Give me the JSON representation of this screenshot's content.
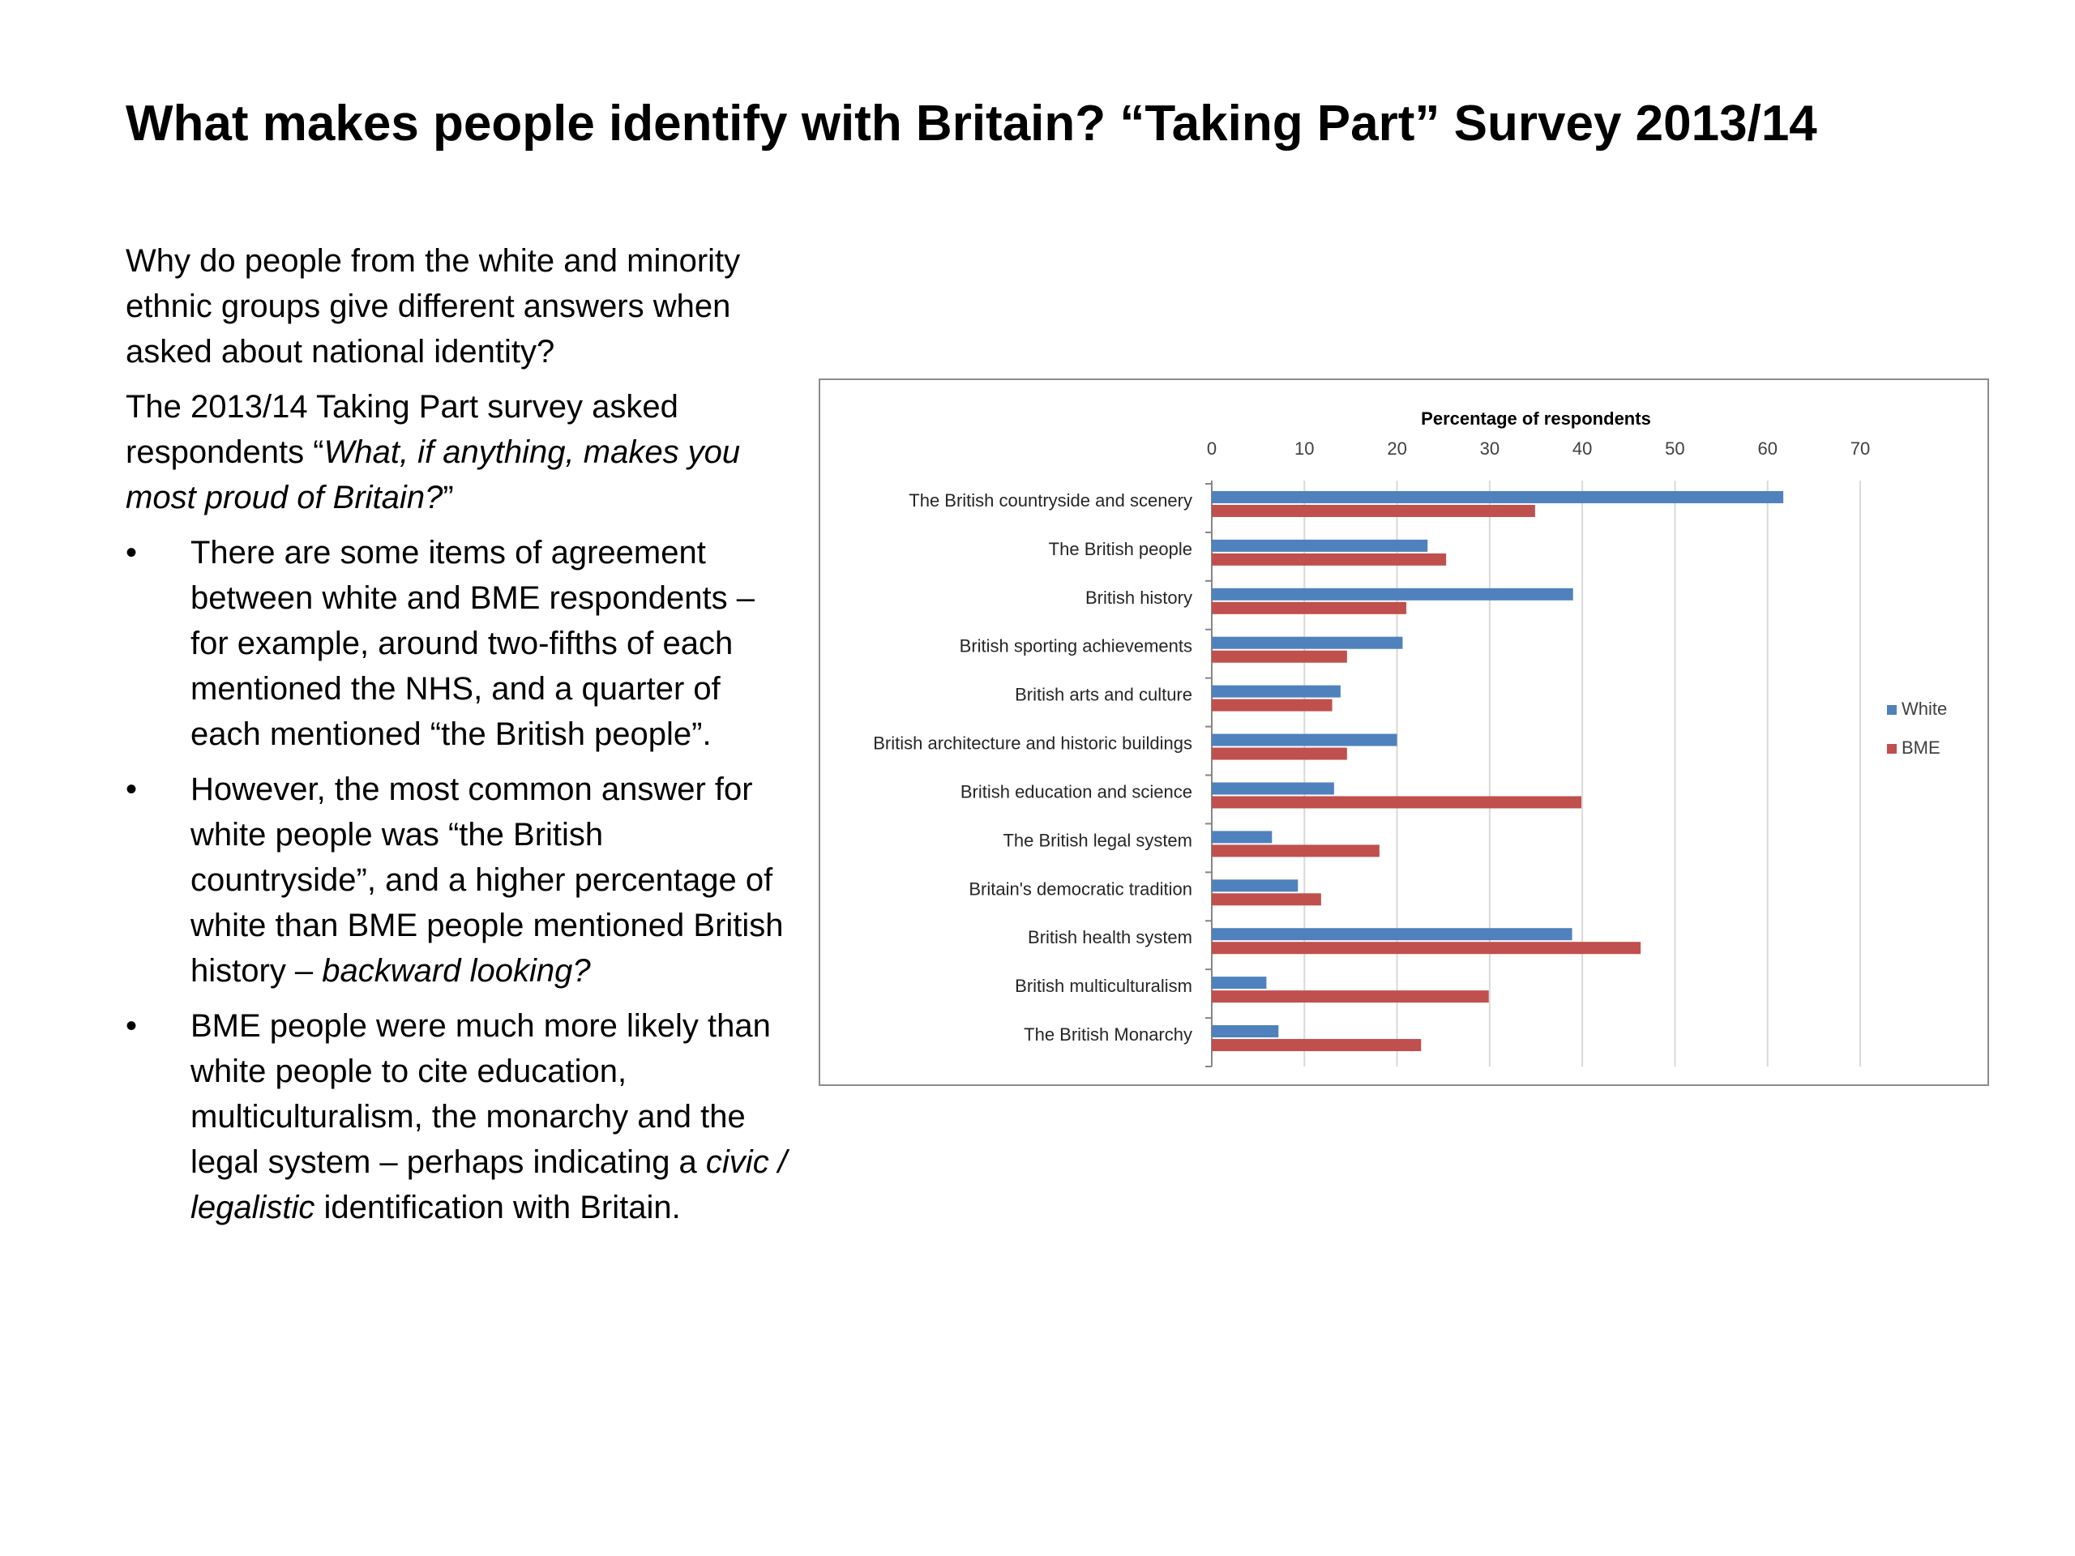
{
  "slide": {
    "title": "What makes people identify with Britain? “Taking Part” Survey 2013/14",
    "intro_question": "Why do people from the white and minority ethnic groups give different answers when asked about national identity?",
    "survey_intro": "The 2013/14 Taking Part survey asked respondents “",
    "survey_question": "What, if anything, makes you most proud of Britain?",
    "survey_close": "”",
    "bullet_symbol": "•",
    "bullets": [
      {
        "text": "There are some items of agreement between white and BME respondents – for example, around two-fifths of each mentioned the NHS, and a quarter of each mentioned “the British people”."
      },
      {
        "text": "However, the most common answer for white people was “the British countryside”, and a higher percentage of white than BME people mentioned British history – ",
        "italic": "backward looking?"
      },
      {
        "text_before": "BME people were much more likely than white people to cite education, multiculturalism, the monarchy and the legal system – perhaps indicating a ",
        "italic": "civic / legalistic",
        "text_after": " identification with Britain."
      }
    ]
  },
  "chart_data": {
    "type": "bar",
    "orientation": "horizontal",
    "xlabel": "Percentage of respondents",
    "xlabel_position": "top",
    "xlim": [
      0,
      70
    ],
    "xticks": [
      0,
      10,
      20,
      30,
      40,
      50,
      60,
      70
    ],
    "grid": true,
    "legend_position": "right",
    "categories": [
      "The British countryside and scenery",
      "The British people",
      "British history",
      "British sporting achievements",
      "British arts and culture",
      "British architecture and historic buildings",
      "British education and science",
      "The British legal system",
      "Britain's democratic tradition",
      "British health system",
      "British multiculturalism",
      "The British Monarchy"
    ],
    "series": [
      {
        "name": "White",
        "color": "#4f81bd",
        "values": [
          61.7,
          23.3,
          39.0,
          20.6,
          13.9,
          20.0,
          13.2,
          6.5,
          9.3,
          38.9,
          5.9,
          7.2
        ]
      },
      {
        "name": "BME",
        "color": "#c0504d",
        "values": [
          34.9,
          25.3,
          21.0,
          14.6,
          13.0,
          14.6,
          39.9,
          18.1,
          11.8,
          46.3,
          29.9,
          22.6
        ]
      }
    ]
  }
}
